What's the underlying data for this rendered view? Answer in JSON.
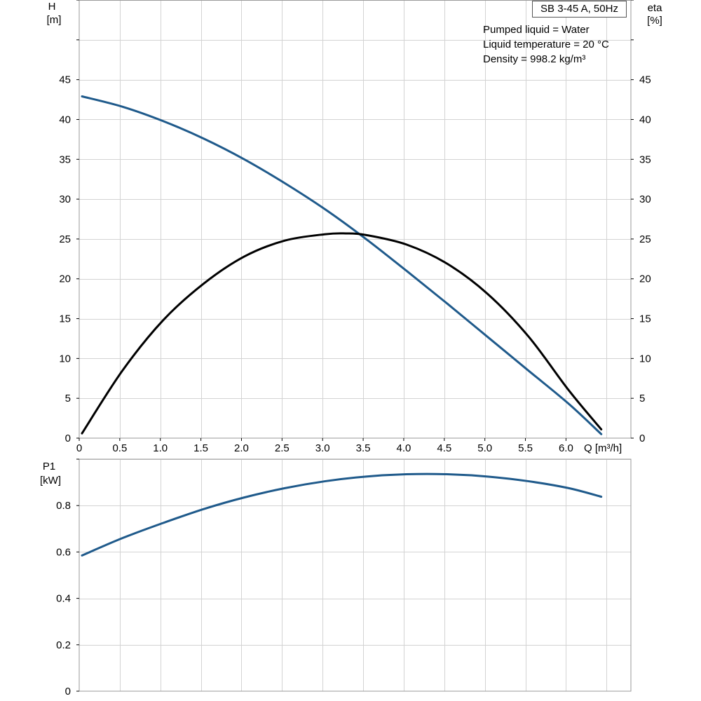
{
  "chart_data": [
    {
      "type": "line",
      "title": "SB 3-45 A, 50Hz",
      "annotations": [
        "Pumped liquid = Water",
        "Liquid temperature = 20 °C",
        "Density = 998.2 kg/m³"
      ],
      "ylabel_left": [
        "H",
        "[m]"
      ],
      "ylabel_right": [
        "eta",
        "[%]"
      ],
      "xlabel": "Q [m³/h]",
      "xlim": [
        0,
        6.8
      ],
      "ylim": [
        0,
        55
      ],
      "xticks": [
        "0",
        "0.5",
        "1.0",
        "1.5",
        "2.0",
        "2.5",
        "3.0",
        "3.5",
        "4.0",
        "4.5",
        "5.0",
        "5.5",
        "6.0"
      ],
      "yticks": [
        "0",
        "5",
        "10",
        "15",
        "20",
        "25",
        "30",
        "35",
        "40",
        "45"
      ],
      "grid": true,
      "series": [
        {
          "color": "#1f5a8b",
          "x": [
            0.0,
            0.5,
            1.0,
            1.5,
            2.0,
            2.5,
            3.0,
            3.5,
            4.0,
            4.5,
            5.0,
            5.5,
            6.0,
            6.4
          ],
          "y": [
            42.9,
            41.6,
            39.8,
            37.6,
            35.0,
            32.0,
            28.7,
            25.0,
            21.0,
            16.9,
            12.7,
            8.5,
            4.3,
            0.5
          ]
        },
        {
          "color": "#000000",
          "x": [
            0.0,
            0.5,
            1.0,
            1.5,
            2.0,
            2.5,
            3.0,
            3.25,
            3.5,
            4.0,
            4.5,
            5.0,
            5.5,
            6.0,
            6.4
          ],
          "y": [
            0.6,
            8.5,
            14.8,
            19.4,
            22.8,
            24.8,
            25.6,
            25.7,
            25.5,
            24.3,
            21.9,
            18.1,
            12.8,
            6.0,
            1.1
          ]
        }
      ]
    },
    {
      "type": "line",
      "ylabel": [
        "P1",
        "[kW]"
      ],
      "xlim": [
        0,
        6.8
      ],
      "ylim": [
        0,
        1.0
      ],
      "yticks": [
        "0",
        "0.2",
        "0.4",
        "0.6",
        "0.8"
      ],
      "grid": true,
      "series": [
        {
          "color": "#1f5a8b",
          "x": [
            0.0,
            0.5,
            1.0,
            1.5,
            2.0,
            2.5,
            3.0,
            3.5,
            4.0,
            4.5,
            5.0,
            5.5,
            6.0,
            6.4
          ],
          "y": [
            0.585,
            0.66,
            0.725,
            0.785,
            0.835,
            0.875,
            0.905,
            0.925,
            0.935,
            0.935,
            0.925,
            0.905,
            0.875,
            0.838
          ]
        }
      ]
    }
  ]
}
